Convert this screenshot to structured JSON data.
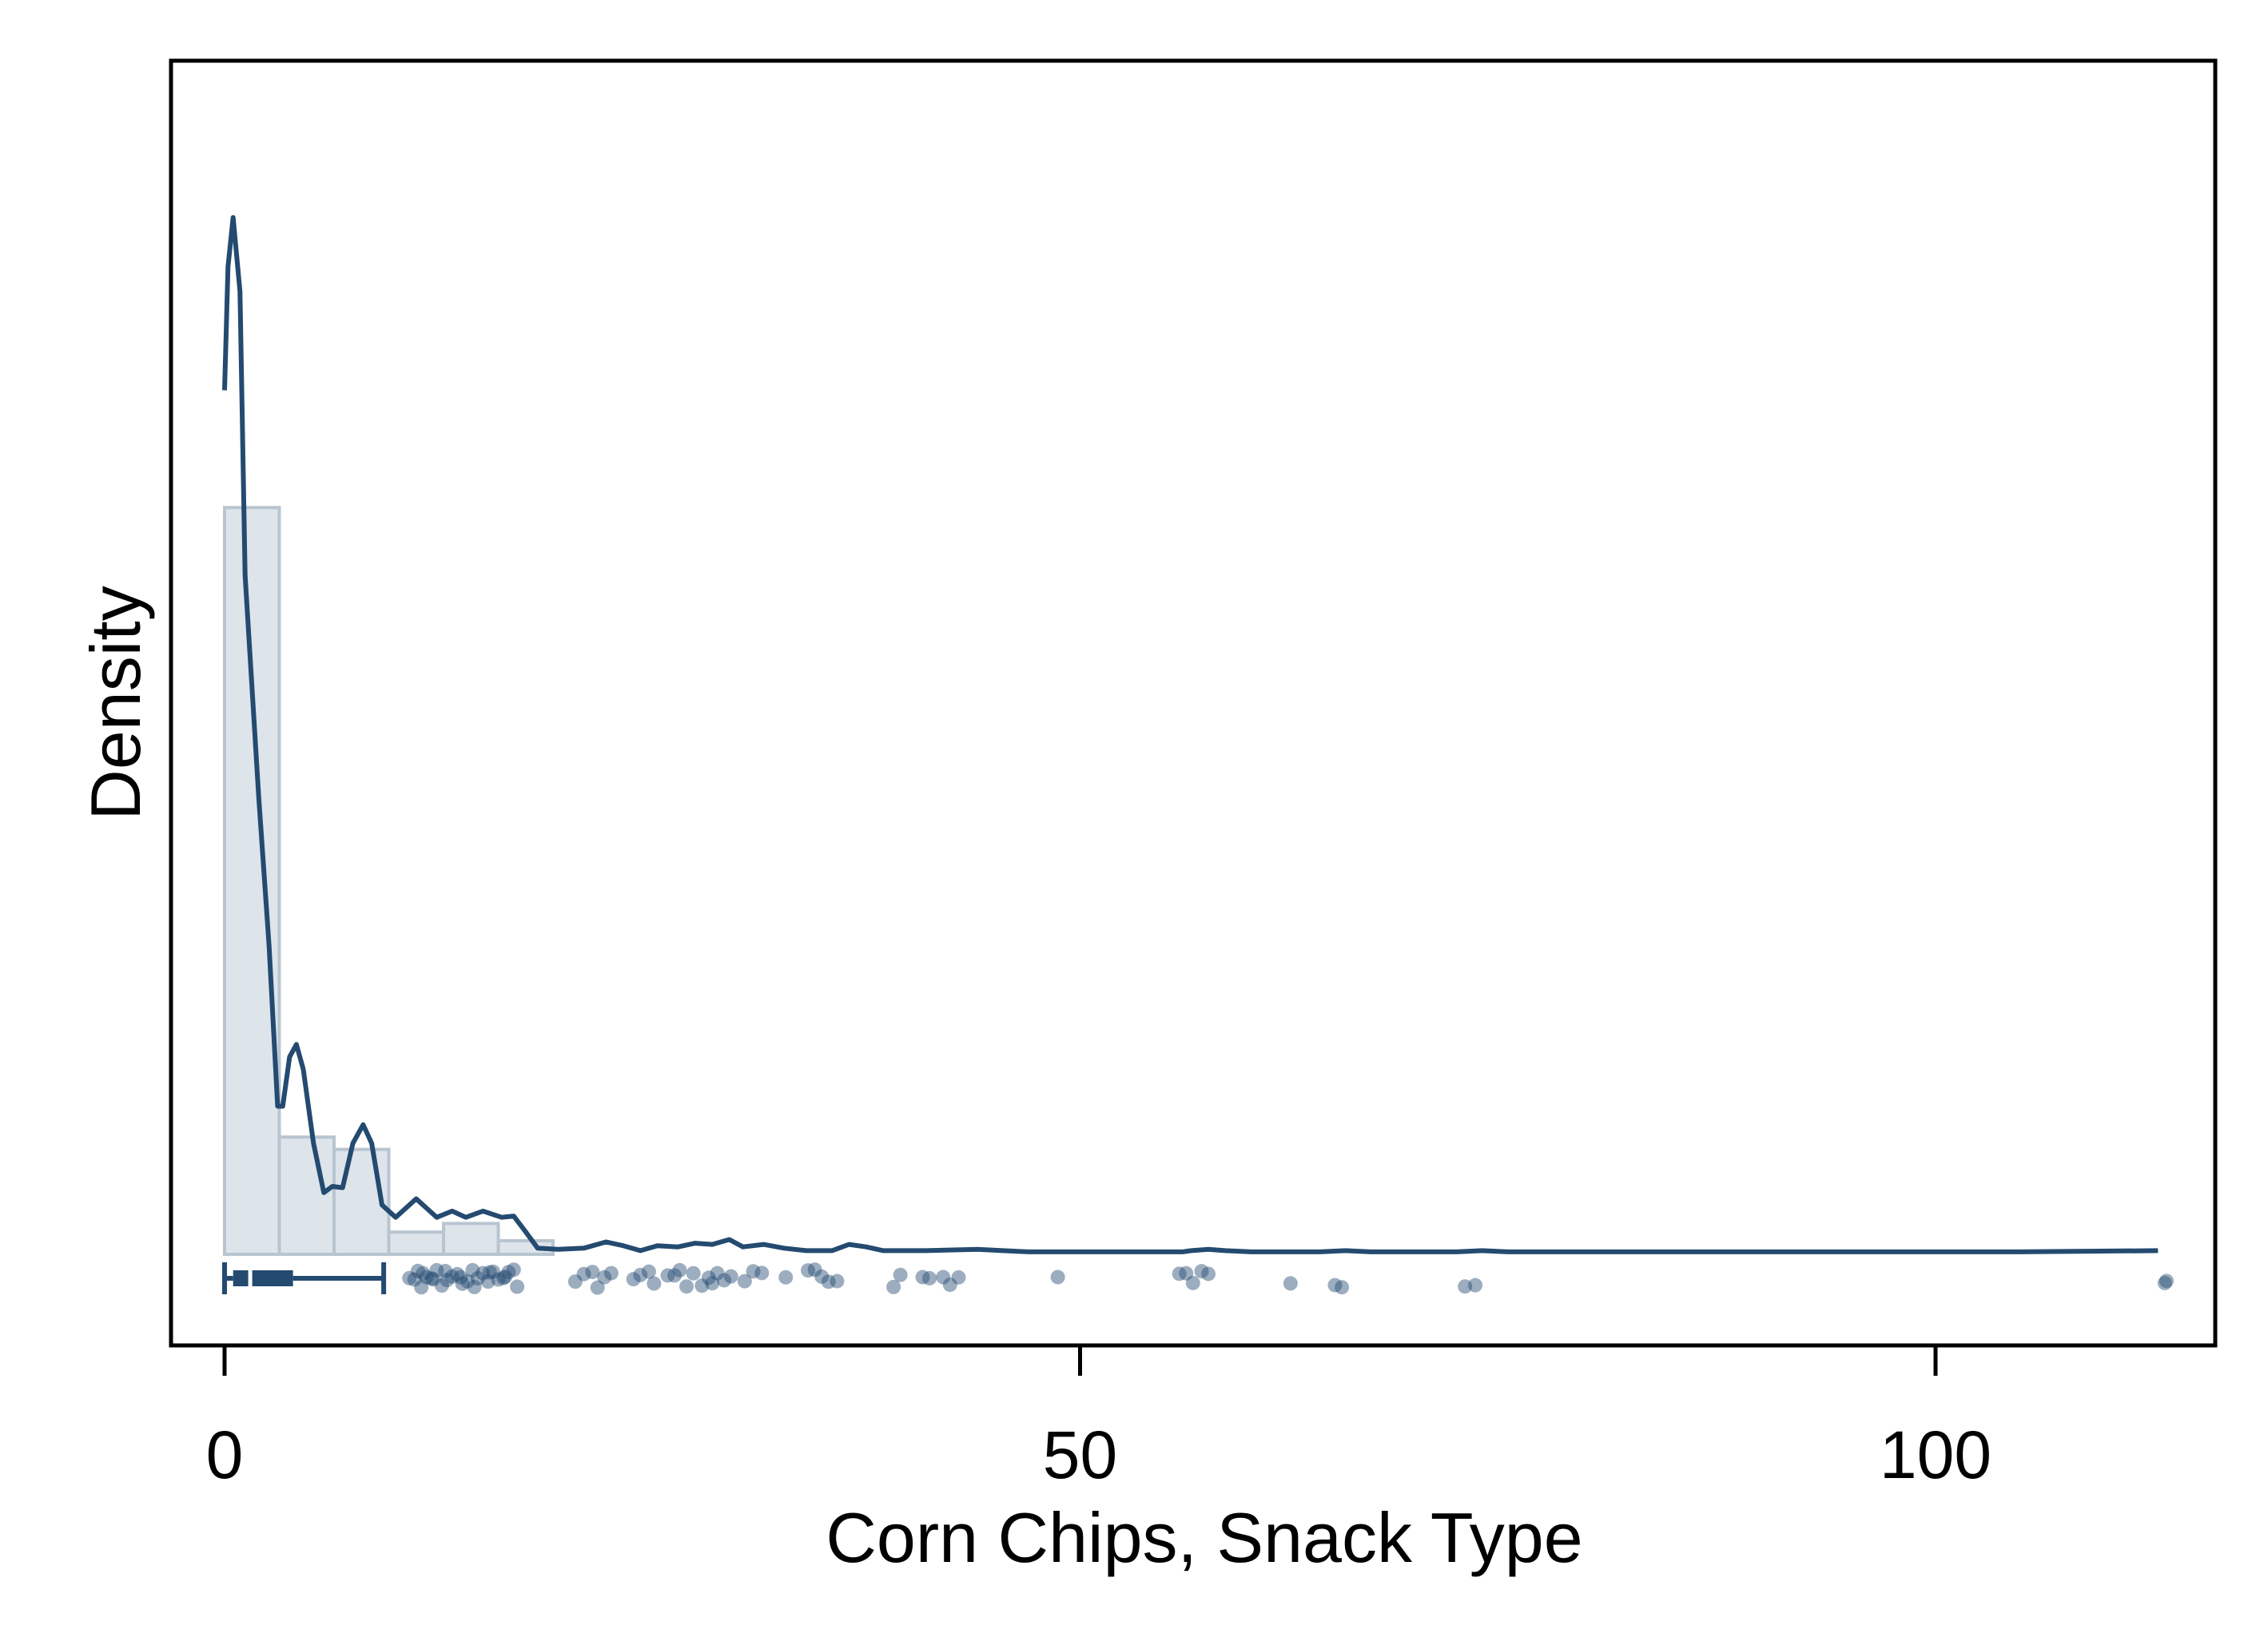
{
  "chart_data": {
    "type": "histogram",
    "title": "",
    "xlabel": "Corn Chips, Snack Type",
    "ylabel": "Density",
    "xlim": [
      -3,
      116.5
    ],
    "x_ticks": [
      {
        "value": 0,
        "label": "0"
      },
      {
        "value": 50,
        "label": "50"
      },
      {
        "value": 100,
        "label": "100"
      }
    ],
    "y_ticks": [],
    "grid": false,
    "legend": "none",
    "colors": {
      "bar_fill": "#dde4ea",
      "bar_stroke": "#b8c5d0",
      "line": "#244a70",
      "points": "#244a70",
      "frame": "#000000"
    },
    "histogram": {
      "bin_width": 3.2,
      "bins": [
        {
          "start": 0.0,
          "density": 0.605
        },
        {
          "start": 3.2,
          "density": 0.095
        },
        {
          "start": 6.4,
          "density": 0.085
        },
        {
          "start": 9.6,
          "density": 0.018
        },
        {
          "start": 12.8,
          "density": 0.025
        },
        {
          "start": 16.0,
          "density": 0.011
        }
      ]
    },
    "density_curve": [
      [
        0.0,
        0.7
      ],
      [
        0.2,
        0.8
      ],
      [
        0.5,
        0.84
      ],
      [
        0.9,
        0.78
      ],
      [
        1.2,
        0.55
      ],
      [
        2.0,
        0.37
      ],
      [
        2.6,
        0.25
      ],
      [
        3.1,
        0.12
      ],
      [
        3.4,
        0.12
      ],
      [
        3.8,
        0.16
      ],
      [
        4.2,
        0.17
      ],
      [
        4.6,
        0.15
      ],
      [
        5.2,
        0.09
      ],
      [
        5.8,
        0.05
      ],
      [
        6.3,
        0.055
      ],
      [
        6.9,
        0.054
      ],
      [
        7.5,
        0.09
      ],
      [
        8.1,
        0.105
      ],
      [
        8.6,
        0.09
      ],
      [
        9.2,
        0.04
      ],
      [
        10.0,
        0.03
      ],
      [
        11.2,
        0.045
      ],
      [
        12.4,
        0.03
      ],
      [
        13.3,
        0.035
      ],
      [
        14.1,
        0.03
      ],
      [
        15.1,
        0.035
      ],
      [
        16.2,
        0.03
      ],
      [
        16.9,
        0.031
      ],
      [
        17.5,
        0.02
      ],
      [
        18.3,
        0.005
      ],
      [
        19.5,
        0.004
      ],
      [
        21.0,
        0.005
      ],
      [
        22.3,
        0.01
      ],
      [
        23.3,
        0.007
      ],
      [
        24.3,
        0.003
      ],
      [
        25.3,
        0.007
      ],
      [
        26.5,
        0.006
      ],
      [
        27.5,
        0.009
      ],
      [
        28.5,
        0.008
      ],
      [
        29.5,
        0.012
      ],
      [
        30.3,
        0.006
      ],
      [
        31.5,
        0.008
      ],
      [
        32.7,
        0.005
      ],
      [
        34.0,
        0.003
      ],
      [
        35.5,
        0.003
      ],
      [
        36.5,
        0.008
      ],
      [
        37.5,
        0.006
      ],
      [
        38.5,
        0.003
      ],
      [
        41.0,
        0.003
      ],
      [
        44.0,
        0.004
      ],
      [
        45.5,
        0.003
      ],
      [
        47.0,
        0.002
      ],
      [
        52.0,
        0.002
      ],
      [
        56.0,
        0.002
      ],
      [
        56.5,
        0.003
      ],
      [
        57.5,
        0.004
      ],
      [
        58.5,
        0.003
      ],
      [
        60.0,
        0.002
      ],
      [
        64.0,
        0.002
      ],
      [
        65.5,
        0.003
      ],
      [
        67.0,
        0.002
      ],
      [
        72.0,
        0.002
      ],
      [
        73.5,
        0.003
      ],
      [
        75.0,
        0.002
      ],
      [
        90.0,
        0.002
      ],
      [
        105.0,
        0.002
      ],
      [
        113.0,
        0.003
      ]
    ],
    "box": {
      "whisker_low": 0.0,
      "q1": 0.5,
      "median": 1.5,
      "q3": 4.0,
      "whisker_high": 9.3
    },
    "points": [
      10.8,
      11.1,
      11.3,
      11.6,
      11.8,
      12.1,
      12.4,
      12.7,
      13.0,
      13.3,
      13.6,
      13.9,
      14.2,
      14.5,
      14.8,
      15.1,
      15.4,
      15.7,
      16.0,
      16.3,
      16.6,
      16.9,
      17.1,
      11.5,
      12.9,
      13.8,
      14.6,
      15.5,
      16.4,
      12.2,
      20.5,
      21.0,
      21.5,
      21.8,
      22.2,
      22.6,
      23.9,
      24.3,
      24.8,
      25.1,
      25.9,
      26.3,
      26.6,
      27.0,
      27.4,
      27.9,
      28.3,
      28.8,
      29.2,
      29.6,
      28.5,
      30.4,
      30.9,
      31.4,
      32.8,
      34.1,
      34.5,
      34.9,
      35.3,
      35.8,
      39.1,
      39.5,
      40.8,
      41.2,
      42.0,
      42.4,
      42.9,
      48.7,
      55.8,
      56.2,
      56.6,
      57.1,
      57.5,
      62.3,
      64.9,
      65.3,
      72.5,
      73.1,
      113.4,
      113.5
    ]
  }
}
